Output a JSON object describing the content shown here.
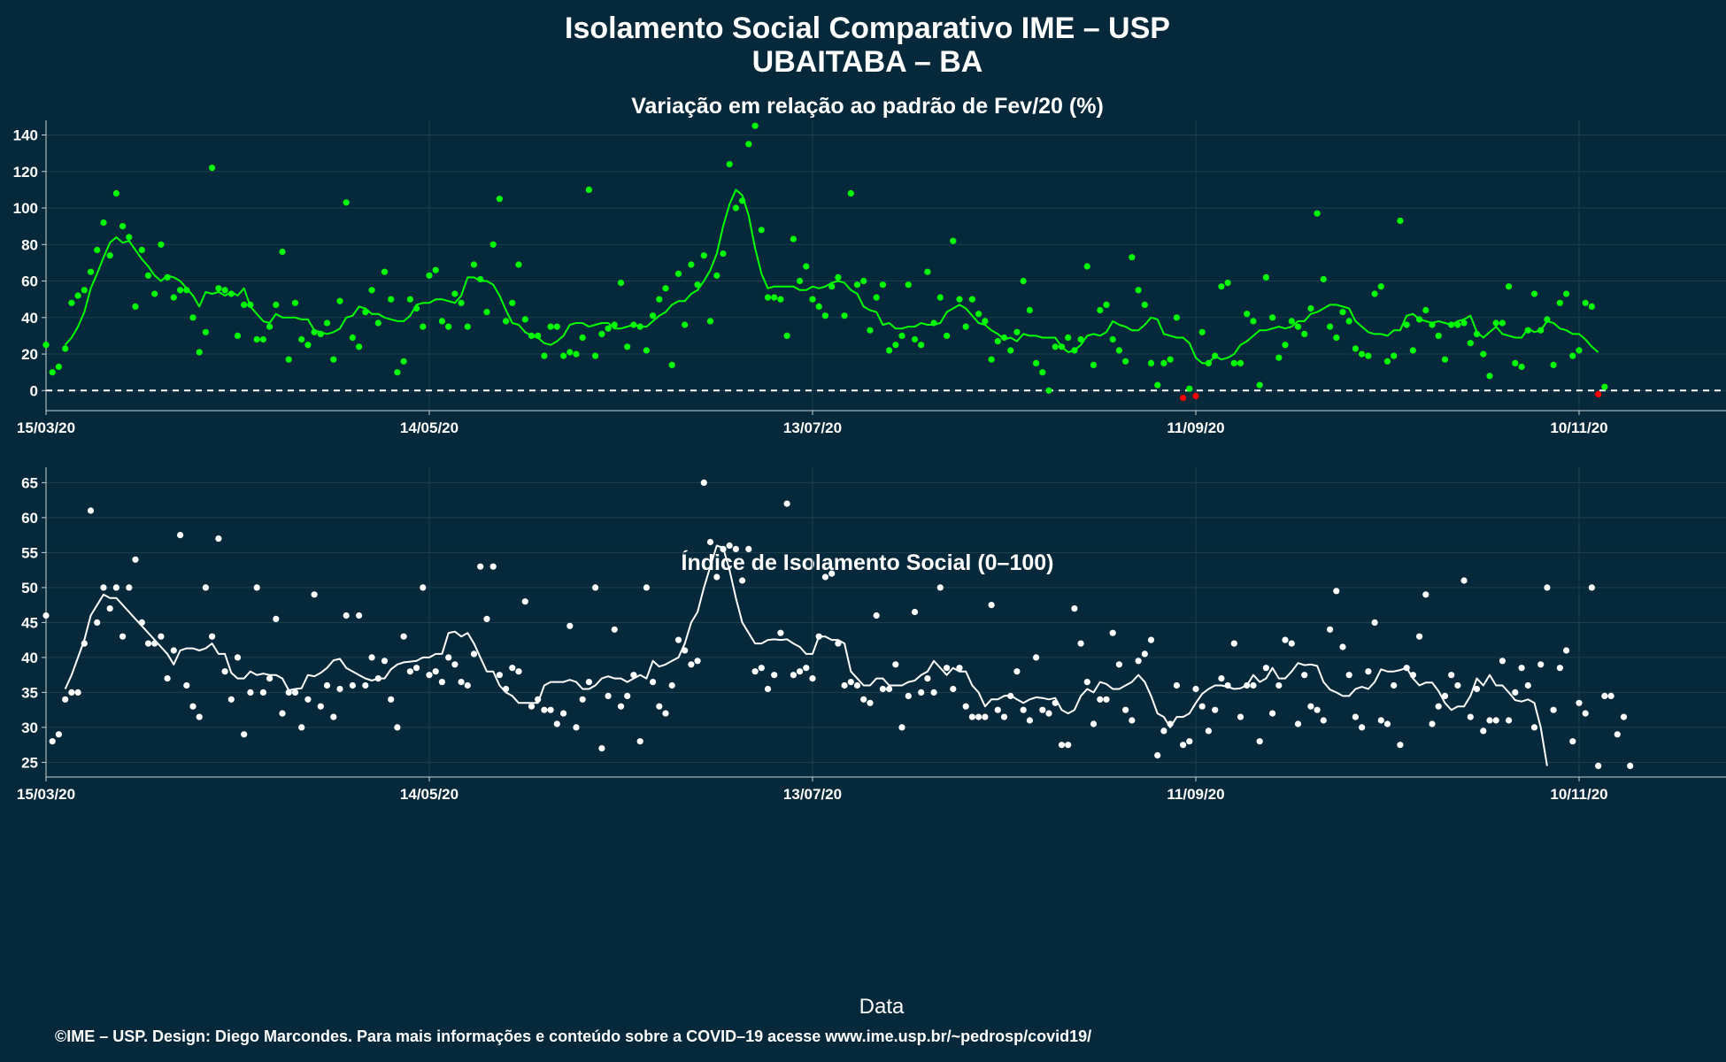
{
  "title": "Isolamento Social Comparativo IME – USP",
  "subtitle": "UBAITABA – BA",
  "xlabel": "Data",
  "footer": "©IME – USP. Design: Diego Marcondes. Para mais informações e conteúdo sobre a COVID–19 acesse www.ime.usp.br/~pedrosp/covid19/",
  "colors": {
    "background": "#05293a",
    "panel_grid": "#1d3f4e",
    "green": "#00ff00",
    "white": "#ffffff",
    "red": "#ff0000"
  },
  "chart_data": [
    {
      "type": "scatter",
      "title": "Variação em relação ao padrão de Fev/20 (%)",
      "x_axis": {
        "type": "date",
        "range": [
          "2020-03-15",
          "2020-12-03"
        ],
        "ticks": [
          "15/03/20",
          "14/05/20",
          "13/07/20",
          "11/09/20",
          "10/11/20"
        ]
      },
      "ylim": [
        -11,
        148
      ],
      "yticks": [
        0,
        20,
        40,
        60,
        80,
        100,
        120,
        140
      ],
      "reference_line": 0,
      "grid": true,
      "series": [
        {
          "kind": "points",
          "color": "#00ff00",
          "note_negative_color": "#ff0000",
          "start": "2020-03-15",
          "values": [
            25,
            10,
            13,
            23,
            48,
            52,
            55,
            65,
            77,
            92,
            74,
            108,
            90,
            84,
            46,
            77,
            63,
            53,
            80,
            62,
            51,
            55,
            55,
            40,
            21,
            32,
            122,
            56,
            55,
            53,
            30,
            47,
            47,
            28,
            28,
            35,
            47,
            76,
            17,
            48,
            28,
            25,
            32,
            31,
            37,
            17,
            49,
            103,
            29,
            24,
            43,
            55,
            37,
            65,
            50,
            10,
            16,
            50,
            45,
            35,
            63,
            66,
            38,
            35,
            53,
            48,
            35,
            69,
            61,
            43,
            80,
            105,
            38,
            48,
            69,
            39,
            30,
            30,
            19,
            35,
            35,
            19,
            21,
            20,
            29,
            110,
            19,
            31,
            34,
            36,
            59,
            24,
            36,
            35,
            22,
            41,
            50,
            56,
            14,
            64,
            36,
            69,
            58,
            74,
            38,
            63,
            75,
            124,
            100,
            104,
            135,
            145,
            88,
            51,
            51,
            50,
            30,
            83,
            60,
            68,
            50,
            46,
            41,
            57,
            62,
            41,
            108,
            58,
            60,
            33,
            51,
            58,
            22,
            25,
            30,
            58,
            28,
            25,
            65,
            37,
            51,
            30,
            82,
            50,
            35,
            50,
            42,
            38,
            17,
            27,
            29,
            22,
            32,
            60,
            44,
            15,
            10,
            0,
            24,
            24,
            29,
            22,
            28,
            68,
            14,
            44,
            47,
            28,
            22,
            16,
            73,
            55,
            47,
            15,
            3,
            15,
            17,
            40,
            -4,
            1,
            -3,
            32,
            15,
            19,
            57,
            59,
            15,
            15,
            42,
            38,
            3,
            62,
            40,
            18,
            25,
            38,
            35,
            31,
            45,
            97,
            61,
            35,
            29,
            43,
            38,
            23,
            20,
            19,
            53,
            57,
            16,
            19,
            93,
            36,
            22,
            39,
            44,
            36,
            30,
            17,
            36,
            36,
            37,
            26,
            31,
            20,
            8,
            37,
            37,
            57,
            15,
            13,
            33,
            53,
            33,
            39,
            14,
            48,
            53,
            19,
            22,
            48,
            46,
            -2,
            2
          ]
        },
        {
          "kind": "moving_average",
          "color": "#00ff00",
          "start": "2020-03-15",
          "values": [
            null,
            null,
            null,
            25,
            29,
            35,
            43,
            56,
            64,
            73,
            81,
            84,
            81,
            82,
            77,
            72,
            68,
            63,
            60,
            63,
            62,
            60,
            56,
            52,
            46,
            54,
            53,
            54,
            52,
            54,
            52,
            56,
            46,
            42,
            38,
            37,
            42,
            40,
            40,
            40,
            39,
            39,
            33,
            32,
            31,
            32,
            34,
            40,
            41,
            46,
            45,
            42,
            42,
            40,
            39,
            38,
            38,
            41,
            47,
            48,
            48,
            50,
            50,
            49,
            48,
            52,
            62,
            62,
            60,
            60,
            58,
            52,
            44,
            37,
            36,
            32,
            30,
            29,
            26,
            25,
            27,
            30,
            36,
            37,
            37,
            35,
            36,
            37,
            37,
            34,
            34,
            35,
            36,
            35,
            35,
            38,
            41,
            43,
            47,
            49,
            49,
            53,
            55,
            60,
            66,
            75,
            90,
            102,
            110,
            107,
            96,
            78,
            64,
            56,
            57,
            57,
            57,
            57,
            55,
            55,
            57,
            56,
            57,
            59,
            60,
            59,
            55,
            53,
            46,
            44,
            43,
            36,
            37,
            34,
            34,
            35,
            35,
            37,
            36,
            36,
            37,
            43,
            45,
            47,
            45,
            41,
            37,
            36,
            33,
            31,
            28,
            29,
            27,
            31,
            30,
            30,
            29,
            29,
            29,
            24,
            21,
            22,
            25,
            30,
            31,
            30,
            32,
            38,
            36,
            35,
            33,
            33,
            36,
            40,
            39,
            31,
            30,
            29,
            29,
            26,
            18,
            15,
            15,
            19,
            17,
            18,
            20,
            25,
            27,
            30,
            33,
            33,
            34,
            35,
            34,
            35,
            38,
            38,
            42,
            43,
            45,
            47,
            47,
            46,
            45,
            38,
            35,
            32,
            31,
            31,
            30,
            33,
            33,
            41,
            42,
            39,
            38,
            37,
            38,
            37,
            36,
            38,
            39,
            41,
            32,
            29,
            32,
            35,
            31,
            30,
            29,
            29,
            34,
            32,
            33,
            38,
            37,
            34,
            33,
            31,
            31,
            28,
            24,
            21,
            null,
            null
          ]
        }
      ]
    },
    {
      "type": "scatter",
      "title": "Índice de Isolamento Social (0–100)",
      "x_axis": {
        "type": "date",
        "range": [
          "2020-03-15",
          "2020-12-03"
        ],
        "ticks": [
          "15/03/20",
          "14/05/20",
          "13/07/20",
          "11/09/20",
          "10/11/20"
        ]
      },
      "ylim": [
        22.9,
        67.2
      ],
      "yticks": [
        25,
        30,
        35,
        40,
        45,
        50,
        55,
        60,
        65
      ],
      "grid": true,
      "series": [
        {
          "kind": "points",
          "color": "#ffffff",
          "start": "2020-03-15",
          "values": [
            46,
            28,
            29,
            34,
            35,
            35,
            42,
            61,
            45,
            50,
            47,
            50,
            43,
            50,
            54,
            45,
            42,
            42,
            43,
            37,
            41,
            57.5,
            36,
            33,
            31.5,
            50,
            43,
            57,
            38,
            34,
            40,
            29,
            35,
            50,
            35,
            37,
            45.5,
            32,
            35,
            35,
            30,
            34,
            49,
            33,
            36,
            31.5,
            35.5,
            46,
            36,
            46,
            36,
            40,
            37,
            39.5,
            34,
            30,
            43,
            38,
            38.5,
            50,
            37.5,
            38,
            36.5,
            40,
            39,
            36.5,
            36,
            40.5,
            53,
            45.5,
            53,
            37.5,
            35.5,
            38.5,
            38,
            48,
            33,
            34,
            32.5,
            32.5,
            30.5,
            32,
            44.5,
            30,
            34,
            36.5,
            50,
            27,
            34.5,
            44,
            33,
            34.5,
            37.5,
            28,
            50,
            36.5,
            33,
            32,
            36,
            42.5,
            41,
            39,
            39.5,
            65,
            56.5,
            51.5,
            55.5,
            56,
            55.5,
            51,
            55.5,
            38,
            38.5,
            35.5,
            37.5,
            43.5,
            62,
            37.5,
            38,
            38.5,
            37,
            43,
            51.5,
            52,
            42,
            36,
            36.5,
            36,
            34,
            33.5,
            46,
            35.5,
            35.5,
            39,
            30,
            34.5,
            46.5,
            35,
            37,
            35,
            50,
            38.5,
            35.5,
            38.5,
            33,
            31.5,
            31.5,
            31.5,
            47.5,
            32.5,
            31.5,
            34.5,
            38,
            32.5,
            31,
            40,
            32.5,
            32,
            33.5,
            27.5,
            27.5,
            47,
            42,
            36.5,
            30.5,
            34,
            34,
            43.5,
            39,
            32.5,
            31,
            39.5,
            40.5,
            42.5,
            26,
            29.5,
            30.5,
            36,
            27.5,
            28,
            35.5,
            33,
            29.5,
            32.5,
            37,
            36,
            42,
            31.5,
            36,
            36,
            28,
            38.5,
            32,
            36,
            42.5,
            42,
            30.5,
            37.5,
            33,
            32.5,
            31,
            44,
            49.5,
            41.5,
            37.5,
            31.5,
            30,
            38,
            45,
            31,
            30.5,
            36,
            27.5,
            38.5,
            37.5,
            43,
            49,
            30.5,
            33,
            34.5,
            37.5,
            36,
            51,
            31.5,
            35.5,
            29.5,
            31,
            31,
            39.5,
            31,
            35,
            38.5,
            36,
            30,
            39,
            50,
            32.5,
            38.5,
            41,
            28,
            33.5,
            32,
            50,
            24.5,
            34.5,
            34.5,
            29,
            31.5,
            24.5
          ]
        },
        {
          "kind": "moving_average",
          "color": "#ffffff",
          "start": "2020-03-15",
          "values": [
            null,
            null,
            null,
            35.5,
            37.5,
            40,
            42.5,
            46,
            47.5,
            49,
            48.5,
            48.5,
            47.5,
            46.5,
            45.5,
            44.5,
            43.5,
            42.5,
            41.5,
            40.5,
            39,
            41,
            41.3,
            41.3,
            41,
            41.3,
            42,
            40.5,
            40.5,
            37.8,
            37,
            37,
            38,
            37.5,
            37.7,
            37.5,
            37.5,
            37,
            35.3,
            35.5,
            35.6,
            37.5,
            37.3,
            37.8,
            38.5,
            39.6,
            39.8,
            38.5,
            38,
            37.5,
            37,
            36.7,
            37,
            37,
            38.3,
            39,
            39.3,
            39.4,
            39.5,
            40,
            40,
            40.5,
            40.5,
            43.5,
            43.7,
            43,
            43.5,
            42,
            40,
            38,
            38,
            36,
            35,
            34.5,
            33.5,
            33.5,
            33.5,
            33.5,
            36,
            36.5,
            36.5,
            36.5,
            36.8,
            36.5,
            35.5,
            35.5,
            36,
            37,
            37.3,
            37,
            37,
            36.5,
            37,
            37.5,
            37,
            39.5,
            38.7,
            39,
            39.5,
            40,
            42,
            45,
            46.5,
            50,
            53,
            56,
            55.7,
            52.5,
            48.5,
            45,
            43.5,
            42,
            42,
            42.5,
            42.6,
            42.5,
            42.6,
            42,
            41.5,
            40.5,
            40.5,
            43,
            43,
            42.5,
            42.5,
            42,
            38,
            37,
            36,
            36,
            37,
            37,
            36,
            36,
            36,
            36.5,
            36.7,
            37.5,
            38,
            39.5,
            38.5,
            37.5,
            38.5,
            38,
            38,
            36,
            35,
            33,
            34,
            34,
            34.5,
            34.6,
            34,
            33.5,
            34,
            34.3,
            34.2,
            34,
            34.2,
            32.5,
            32,
            32.5,
            34.5,
            35.5,
            35,
            36.5,
            36.2,
            35.5,
            35.5,
            36,
            36.5,
            37.5,
            36.5,
            34.5,
            32,
            31.5,
            30,
            31.5,
            31.5,
            32,
            33.5,
            34.8,
            35.5,
            36,
            36,
            35.8,
            35.5,
            35.6,
            36,
            37.5,
            36.5,
            37,
            38.5,
            37,
            37,
            38,
            39.2,
            38.9,
            39,
            38.8,
            36.5,
            35.4,
            35,
            34.5,
            34.5,
            35.5,
            35.8,
            35.5,
            36.5,
            38.3,
            38,
            38,
            38.2,
            38.5,
            37,
            36,
            36.4,
            36.4,
            35.2,
            33.5,
            32.5,
            33,
            33,
            34.5,
            37,
            36,
            37.5,
            36,
            36,
            35,
            33.9,
            33.7,
            34,
            33.5,
            30,
            24.5
          ]
        }
      ]
    }
  ]
}
